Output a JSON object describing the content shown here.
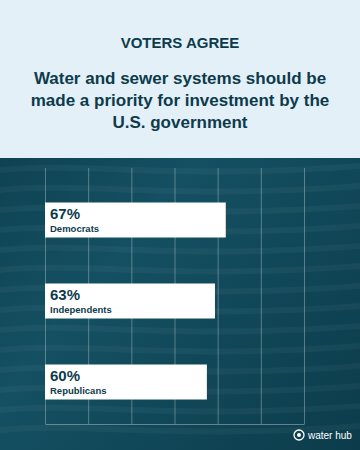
{
  "chart_data": {
    "type": "bar",
    "orientation": "horizontal",
    "title": "VOTERS AGREE",
    "subtitle": "Water and sewer systems should be made a priority for investment by the U.S. government",
    "categories": [
      "Democrats",
      "Independents",
      "Republicans"
    ],
    "values": [
      67,
      63,
      60
    ],
    "value_labels": [
      "67%",
      "63%",
      "60%"
    ],
    "data_labels": true,
    "color": "#ffffff",
    "xlim": [
      0,
      96
    ],
    "xticks": [
      0,
      16,
      32,
      48,
      64,
      80,
      96
    ],
    "grid": true,
    "tick_labels": false,
    "annotations": [
      "water hub"
    ]
  }
}
